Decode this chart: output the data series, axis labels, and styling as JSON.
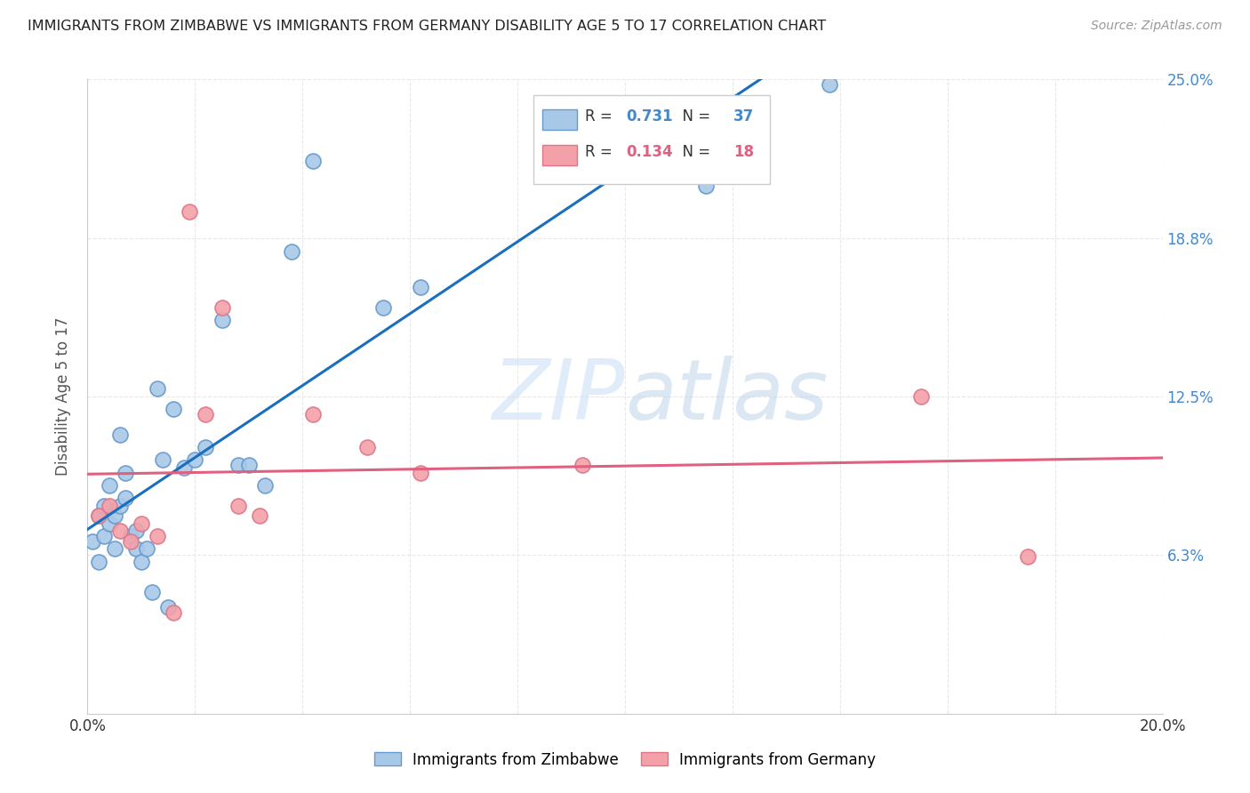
{
  "title": "IMMIGRANTS FROM ZIMBABWE VS IMMIGRANTS FROM GERMANY DISABILITY AGE 5 TO 17 CORRELATION CHART",
  "source": "Source: ZipAtlas.com",
  "ylabel": "Disability Age 5 to 17",
  "xlim": [
    0.0,
    0.2
  ],
  "ylim": [
    0.0,
    0.25
  ],
  "xtick_vals": [
    0.0,
    0.02,
    0.04,
    0.06,
    0.08,
    0.1,
    0.12,
    0.14,
    0.16,
    0.18,
    0.2
  ],
  "ytick_vals": [
    0.0,
    0.0625,
    0.125,
    0.1875,
    0.25
  ],
  "ytick_labels": [
    "",
    "6.3%",
    "12.5%",
    "18.8%",
    "25.0%"
  ],
  "xtick_labels": [
    "0.0%",
    "",
    "",
    "",
    "",
    "",
    "",
    "",
    "",
    "",
    "20.0%"
  ],
  "zimbabwe_color": "#a8c8e8",
  "germany_color": "#f4a0a8",
  "zimbabwe_edge": "#6699cc",
  "germany_edge": "#dd7788",
  "trend_blue": "#1a6fbd",
  "trend_pink": "#e06080",
  "watermark_color": "#ddeeff",
  "R_zimbabwe": "0.731",
  "N_zimbabwe": "37",
  "R_germany": "0.134",
  "N_germany": "18",
  "zimbabwe_x": [
    0.001,
    0.002,
    0.002,
    0.003,
    0.003,
    0.004,
    0.004,
    0.005,
    0.005,
    0.006,
    0.006,
    0.007,
    0.007,
    0.008,
    0.009,
    0.009,
    0.01,
    0.011,
    0.012,
    0.013,
    0.014,
    0.015,
    0.016,
    0.018,
    0.02,
    0.022,
    0.025,
    0.028,
    0.03,
    0.033,
    0.038,
    0.042,
    0.055,
    0.062,
    0.095,
    0.115,
    0.138
  ],
  "zimbabwe_y": [
    0.068,
    0.078,
    0.06,
    0.07,
    0.082,
    0.075,
    0.09,
    0.078,
    0.065,
    0.082,
    0.11,
    0.085,
    0.095,
    0.07,
    0.065,
    0.072,
    0.06,
    0.065,
    0.048,
    0.128,
    0.1,
    0.042,
    0.12,
    0.097,
    0.1,
    0.105,
    0.155,
    0.098,
    0.098,
    0.09,
    0.182,
    0.218,
    0.16,
    0.168,
    0.218,
    0.208,
    0.248
  ],
  "germany_x": [
    0.002,
    0.004,
    0.006,
    0.008,
    0.01,
    0.013,
    0.016,
    0.019,
    0.022,
    0.025,
    0.028,
    0.032,
    0.042,
    0.052,
    0.062,
    0.092,
    0.155,
    0.175
  ],
  "germany_y": [
    0.078,
    0.082,
    0.072,
    0.068,
    0.075,
    0.07,
    0.04,
    0.198,
    0.118,
    0.16,
    0.082,
    0.078,
    0.118,
    0.105,
    0.095,
    0.098,
    0.125,
    0.062
  ],
  "background_color": "#ffffff",
  "grid_color": "#e8e8e8",
  "axis_color": "#cccccc",
  "label_color": "#4488cc",
  "title_color": "#222222",
  "source_color": "#999999",
  "ylabel_color": "#555555"
}
